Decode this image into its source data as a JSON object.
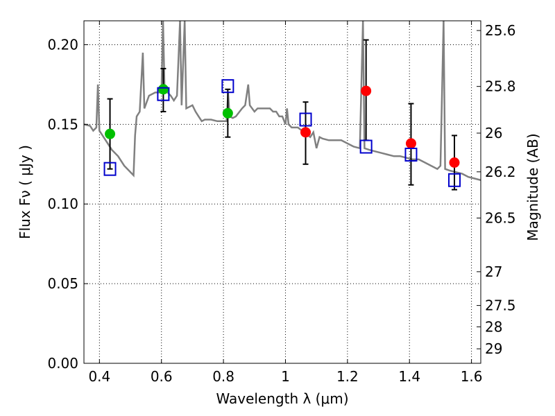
{
  "chart_data": {
    "type": "scatter",
    "xlabel": "Wavelength  λ (μm)",
    "ylabel": "Flux  Fν  ( μJy )",
    "y2label": "Magnitude (AB)",
    "xlim": [
      0.35,
      1.63
    ],
    "ylim": [
      0.0,
      0.215
    ],
    "x_ticks": [
      0.4,
      0.6,
      0.8,
      1.0,
      1.2,
      1.4,
      1.6
    ],
    "x_tick_labels": [
      "0.4",
      "0.6",
      "0.8",
      "1",
      "1.2",
      "1.4",
      "1.6"
    ],
    "y_ticks": [
      0.0,
      0.05,
      0.1,
      0.15,
      0.2
    ],
    "y_tick_labels": [
      "0.00",
      "0.05",
      "0.10",
      "0.15",
      "0.20"
    ],
    "y2_ticks": [
      {
        "label": "25.6",
        "flux": 0.2089
      },
      {
        "label": "25.8",
        "flux": 0.1738
      },
      {
        "label": "26",
        "flux": 0.1445
      },
      {
        "label": "26.2",
        "flux": 0.1202
      },
      {
        "label": "26.5",
        "flux": 0.0912
      },
      {
        "label": "27",
        "flux": 0.0575
      },
      {
        "label": "27.5",
        "flux": 0.0363
      },
      {
        "label": "28",
        "flux": 0.0229
      },
      {
        "label": "29",
        "flux": 0.0091
      }
    ],
    "grid": true,
    "colors": {
      "model": "#808080",
      "green_points": "#00c000",
      "red_points": "#ff0000",
      "squares": "#0000cc",
      "errorbars": "#000000"
    },
    "series": [
      {
        "type": "line",
        "points": [
          [
            0.35,
            0.15
          ],
          [
            0.37,
            0.149
          ],
          [
            0.38,
            0.146
          ],
          [
            0.39,
            0.148
          ],
          [
            0.395,
            0.175
          ],
          [
            0.4,
            0.146
          ],
          [
            0.42,
            0.14
          ],
          [
            0.44,
            0.134
          ],
          [
            0.46,
            0.13
          ],
          [
            0.48,
            0.124
          ],
          [
            0.5,
            0.12
          ],
          [
            0.51,
            0.118
          ],
          [
            0.515,
            0.143
          ],
          [
            0.52,
            0.155
          ],
          [
            0.53,
            0.158
          ],
          [
            0.54,
            0.195
          ],
          [
            0.545,
            0.16
          ],
          [
            0.56,
            0.168
          ],
          [
            0.58,
            0.17
          ],
          [
            0.6,
            0.17
          ],
          [
            0.605,
            0.215
          ],
          [
            0.61,
            0.172
          ],
          [
            0.63,
            0.168
          ],
          [
            0.64,
            0.165
          ],
          [
            0.65,
            0.168
          ],
          [
            0.66,
            0.215
          ],
          [
            0.665,
            0.162
          ],
          [
            0.675,
            0.215
          ],
          [
            0.68,
            0.16
          ],
          [
            0.7,
            0.162
          ],
          [
            0.71,
            0.158
          ],
          [
            0.72,
            0.155
          ],
          [
            0.73,
            0.152
          ],
          [
            0.74,
            0.153
          ],
          [
            0.76,
            0.153
          ],
          [
            0.78,
            0.152
          ],
          [
            0.8,
            0.152
          ],
          [
            0.81,
            0.152
          ],
          [
            0.815,
            0.17
          ],
          [
            0.82,
            0.155
          ],
          [
            0.83,
            0.154
          ],
          [
            0.84,
            0.155
          ],
          [
            0.86,
            0.16
          ],
          [
            0.87,
            0.162
          ],
          [
            0.88,
            0.175
          ],
          [
            0.885,
            0.162
          ],
          [
            0.9,
            0.158
          ],
          [
            0.91,
            0.16
          ],
          [
            0.93,
            0.16
          ],
          [
            0.95,
            0.16
          ],
          [
            0.96,
            0.158
          ],
          [
            0.97,
            0.158
          ],
          [
            0.98,
            0.155
          ],
          [
            0.99,
            0.155
          ],
          [
            1.0,
            0.15
          ],
          [
            1.005,
            0.16
          ],
          [
            1.01,
            0.15
          ],
          [
            1.02,
            0.148
          ],
          [
            1.04,
            0.148
          ],
          [
            1.06,
            0.145
          ],
          [
            1.08,
            0.142
          ],
          [
            1.09,
            0.145
          ],
          [
            1.1,
            0.135
          ],
          [
            1.11,
            0.142
          ],
          [
            1.12,
            0.141
          ],
          [
            1.14,
            0.14
          ],
          [
            1.16,
            0.14
          ],
          [
            1.18,
            0.14
          ],
          [
            1.2,
            0.138
          ],
          [
            1.22,
            0.136
          ],
          [
            1.24,
            0.135
          ],
          [
            1.25,
            0.215
          ],
          [
            1.255,
            0.135
          ],
          [
            1.27,
            0.134
          ],
          [
            1.29,
            0.133
          ],
          [
            1.31,
            0.132
          ],
          [
            1.33,
            0.131
          ],
          [
            1.35,
            0.13
          ],
          [
            1.37,
            0.13
          ],
          [
            1.39,
            0.129
          ],
          [
            1.41,
            0.128
          ],
          [
            1.43,
            0.128
          ],
          [
            1.45,
            0.126
          ],
          [
            1.47,
            0.124
          ],
          [
            1.49,
            0.122
          ],
          [
            1.5,
            0.124
          ],
          [
            1.51,
            0.215
          ],
          [
            1.515,
            0.122
          ],
          [
            1.53,
            0.121
          ],
          [
            1.55,
            0.12
          ],
          [
            1.57,
            0.119
          ],
          [
            1.59,
            0.117
          ],
          [
            1.61,
            0.116
          ],
          [
            1.63,
            0.115
          ]
        ]
      },
      {
        "type": "scatter",
        "marker": "circle",
        "color": "green",
        "points": [
          [
            0.434,
            0.144
          ],
          [
            0.606,
            0.172
          ],
          [
            0.814,
            0.157
          ]
        ]
      },
      {
        "type": "scatter",
        "marker": "circle",
        "color": "red",
        "points": [
          [
            1.065,
            0.145
          ],
          [
            1.26,
            0.171
          ],
          [
            1.405,
            0.138
          ],
          [
            1.545,
            0.126
          ]
        ]
      },
      {
        "type": "errorbar",
        "points": [
          {
            "x": 0.434,
            "y": 0.144,
            "lo": 0.122,
            "hi": 0.166
          },
          {
            "x": 0.606,
            "y": 0.172,
            "lo": 0.158,
            "hi": 0.185
          },
          {
            "x": 0.814,
            "y": 0.157,
            "lo": 0.142,
            "hi": 0.172
          },
          {
            "x": 1.065,
            "y": 0.145,
            "lo": 0.125,
            "hi": 0.164
          },
          {
            "x": 1.26,
            "y": 0.171,
            "lo": 0.14,
            "hi": 0.203
          },
          {
            "x": 1.405,
            "y": 0.138,
            "lo": 0.112,
            "hi": 0.163
          },
          {
            "x": 1.545,
            "y": 0.126,
            "lo": 0.109,
            "hi": 0.143
          }
        ]
      },
      {
        "type": "scatter",
        "marker": "open-square",
        "color": "blue",
        "points": [
          [
            0.434,
            0.122
          ],
          [
            0.606,
            0.169
          ],
          [
            0.814,
            0.174
          ],
          [
            1.065,
            0.153
          ],
          [
            1.26,
            0.136
          ],
          [
            1.405,
            0.131
          ],
          [
            1.545,
            0.115
          ]
        ]
      }
    ]
  }
}
